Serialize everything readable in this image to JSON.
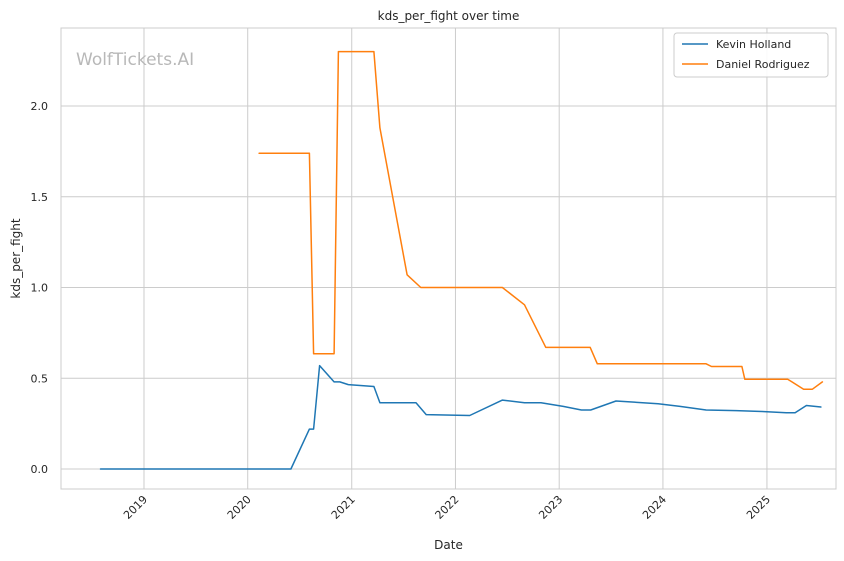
{
  "chart_data": {
    "type": "line",
    "title": "kds_per_fight over time",
    "xlabel": "Date",
    "ylabel": "kds_per_fight",
    "watermark": "WolfTickets.AI",
    "grid": true,
    "legend_position": "top-right",
    "xlim": [
      "2018-03-15",
      "2025-09-01"
    ],
    "ylim": [
      -0.11,
      2.43
    ],
    "x_ticks": [
      "2019-01-01",
      "2020-01-01",
      "2021-01-01",
      "2022-01-01",
      "2023-01-01",
      "2024-01-01",
      "2025-01-01"
    ],
    "x_tick_labels": [
      "2019",
      "2020",
      "2021",
      "2022",
      "2023",
      "2024",
      "2025"
    ],
    "y_ticks": [
      0.0,
      0.5,
      1.0,
      1.5,
      2.0
    ],
    "y_tick_labels": [
      "0.0",
      "0.5",
      "1.0",
      "1.5",
      "2.0"
    ],
    "series": [
      {
        "name": "Kevin Holland",
        "color": "#1f77b4",
        "x": [
          "2018-08-01",
          "2019-01-01",
          "2020-01-01",
          "2020-06-01",
          "2020-08-05",
          "2020-08-20",
          "2020-09-10",
          "2020-10-31",
          "2020-11-20",
          "2020-12-20",
          "2021-03-20",
          "2021-04-10",
          "2021-06-15",
          "2021-08-15",
          "2021-09-20",
          "2022-02-20",
          "2022-06-15",
          "2022-09-01",
          "2022-10-29",
          "2023-01-15",
          "2023-03-20",
          "2023-04-22",
          "2023-07-20",
          "2023-12-15",
          "2024-03-01",
          "2024-06-01",
          "2024-09-15",
          "2024-12-15",
          "2025-03-10",
          "2025-04-10",
          "2025-05-20",
          "2025-07-10"
        ],
        "values": [
          0.0,
          0.0,
          0.0,
          0.0,
          0.22,
          0.22,
          0.57,
          0.48,
          0.48,
          0.465,
          0.455,
          0.365,
          0.365,
          0.365,
          0.3,
          0.295,
          0.38,
          0.365,
          0.365,
          0.345,
          0.325,
          0.325,
          0.375,
          0.36,
          0.345,
          0.325,
          0.322,
          0.317,
          0.31,
          0.31,
          0.35,
          0.342
        ]
      },
      {
        "name": "Daniel Rodriguez",
        "color": "#ff7f0e",
        "x": [
          "2020-02-10",
          "2020-08-05",
          "2020-08-20",
          "2020-10-31",
          "2020-11-15",
          "2021-01-20",
          "2021-03-20",
          "2021-04-10",
          "2021-07-15",
          "2021-09-01",
          "2021-12-01",
          "2022-06-15",
          "2022-09-01",
          "2022-11-15",
          "2023-01-20",
          "2023-04-20",
          "2023-05-15",
          "2023-09-01",
          "2024-01-15",
          "2024-06-01",
          "2024-06-20",
          "2024-10-05",
          "2024-10-15",
          "2025-03-15",
          "2025-05-10",
          "2025-06-10",
          "2025-07-15"
        ],
        "values": [
          1.74,
          1.74,
          0.635,
          0.635,
          2.3,
          2.3,
          2.3,
          1.88,
          1.07,
          1.0,
          1.0,
          1.0,
          0.905,
          0.67,
          0.67,
          0.67,
          0.58,
          0.58,
          0.58,
          0.58,
          0.565,
          0.565,
          0.495,
          0.495,
          0.44,
          0.44,
          0.48
        ]
      }
    ]
  }
}
